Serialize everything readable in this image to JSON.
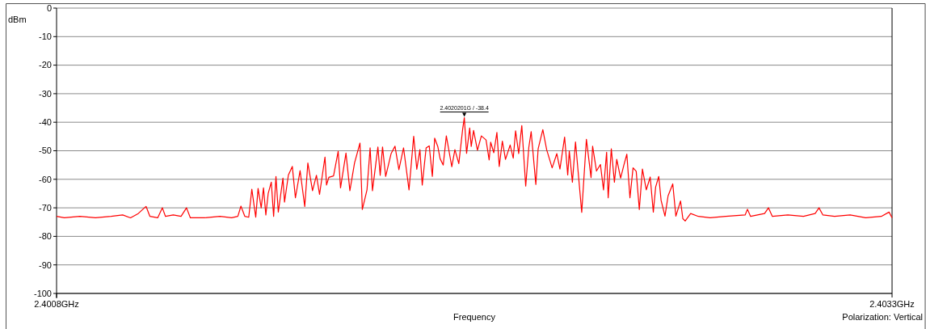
{
  "chart_data": {
    "type": "line",
    "xlabel": "Frequency",
    "ylabel": "dBm",
    "xlim": [
      2.4008,
      2.4033
    ],
    "xticks": [
      {
        "value": 2.4008,
        "label": "2.4008GHz"
      },
      {
        "value": 2.4033,
        "label": "2.4033GHz"
      }
    ],
    "ylim": [
      -100,
      0
    ],
    "yticks": [
      0,
      -10,
      -20,
      -30,
      -40,
      -50,
      -60,
      -70,
      -80,
      -90,
      -100
    ],
    "grid": "y",
    "marker": "none",
    "line_style": "solid",
    "annotations": [
      {
        "text": "2.4020201G / -38.4",
        "x": 2.4020201,
        "y": -38.4
      },
      "Polarization: Vertical"
    ],
    "series": [
      {
        "color": "#ff0000",
        "x": [
          2.4008,
          2.4008233,
          2.4008698,
          2.4009164,
          2.400963,
          2.4009979,
          2.4010212,
          2.4010444,
          2.4010677,
          2.4010794,
          2.4011026,
          2.4011166,
          2.4011259,
          2.4011492,
          2.4011725,
          2.4011888,
          2.4012004,
          2.4012423,
          2.4012889,
          2.4013238,
          2.4013424,
          2.4013517,
          2.4013634,
          2.401375,
          2.4013843,
          2.401396,
          2.401403,
          2.4014123,
          2.4014192,
          2.4014262,
          2.4014332,
          2.4014425,
          2.4014495,
          2.4014565,
          2.4014635,
          2.4014774,
          2.4014821,
          2.4014937,
          2.4015054,
          2.4015147,
          2.4015287,
          2.4015426,
          2.4015519,
          2.4015659,
          2.4015776,
          2.4015869,
          2.4016032,
          2.4016078,
          2.4016148,
          2.4016288,
          2.4016427,
          2.4016497,
          2.401666,
          2.4016777,
          2.4016916,
          2.4017079,
          2.4017149,
          2.4017289,
          2.4017382,
          2.4017452,
          2.4017615,
          2.4017684,
          2.4017754,
          2.4017847,
          2.401801,
          2.4018127,
          2.4018243,
          2.4018383,
          2.4018546,
          2.4018686,
          2.4018779,
          2.4018872,
          2.4018942,
          2.4019058,
          2.4019151,
          2.4019244,
          2.4019314,
          2.4019407,
          2.4019477,
          2.401957,
          2.4019663,
          2.4019826,
          2.4019919,
          2.4020036,
          2.4020152,
          2.4020201,
          2.4020269,
          2.4020362,
          2.4020408,
          2.4020478,
          2.4020594,
          2.4020711,
          2.4020851,
          2.4020944,
          2.402099,
          2.4021083,
          2.4021176,
          2.4021246,
          2.4021339,
          2.4021433,
          2.4021572,
          2.4021665,
          2.4021735,
          2.4021828,
          2.4021921,
          2.4022038,
          2.4022131,
          2.4022201,
          2.4022341,
          2.402241,
          2.402255,
          2.4022666,
          2.4022829,
          2.4022969,
          2.4023062,
          2.4023202,
          2.4023295,
          2.4023342,
          2.4023435,
          2.4023528,
          2.4023714,
          2.4023854,
          2.4023993,
          2.402404,
          2.4024156,
          2.4024273,
          2.4024366,
          2.4024459,
          2.4024506,
          2.4024599,
          2.4024692,
          2.4024762,
          2.4024878,
          2.4024971,
          2.4025064,
          2.4025157,
          2.402525,
          2.4025344,
          2.4025437,
          2.402553,
          2.4025646,
          2.4025763,
          2.4025856,
          2.4025926,
          2.4026019,
          2.4026089,
          2.4026205,
          2.4026298,
          2.4026438,
          2.4026531,
          2.4026671,
          2.402674,
          2.402681,
          2.4026973,
          2.4027206,
          2.4027555,
          2.4028021,
          2.4028603,
          2.4028673,
          2.4028766,
          2.4029185,
          2.4029301,
          2.4029418,
          2.4029883,
          2.4030349,
          2.4030698,
          2.4030814,
          2.4030931,
          2.403128,
          2.4031746,
          2.4032211,
          2.4032677,
          2.403291,
          2.4033
        ],
        "values": [
          -73,
          -73.5,
          -73,
          -73.5,
          -73,
          -72.5,
          -73.5,
          -72,
          -69.5,
          -73,
          -73.5,
          -70,
          -73,
          -72.5,
          -73,
          -70,
          -73.5,
          -73.5,
          -73,
          -73.5,
          -73,
          -69.4,
          -73,
          -73.3,
          -63.5,
          -73.3,
          -63.2,
          -70,
          -63,
          -72.5,
          -65,
          -61,
          -73,
          -59,
          -71.5,
          -59.6,
          -68,
          -58.5,
          -55.5,
          -66.5,
          -57,
          -69.5,
          -54.3,
          -64,
          -58.6,
          -65.3,
          -52.2,
          -62,
          -59.3,
          -58.8,
          -50.2,
          -63,
          -50.8,
          -64,
          -54.3,
          -47.3,
          -70.6,
          -63.7,
          -49,
          -64,
          -48.7,
          -58.6,
          -48.7,
          -59,
          -51,
          -48.4,
          -56.6,
          -49,
          -63.7,
          -44.9,
          -56.5,
          -49.6,
          -62,
          -49,
          -48.3,
          -59,
          -45.6,
          -48.5,
          -52.8,
          -55,
          -44.8,
          -55.6,
          -49.6,
          -54.5,
          -42.4,
          -38.4,
          -50.9,
          -42,
          -48.5,
          -42.9,
          -49.8,
          -44.8,
          -46.2,
          -53.2,
          -47,
          -50.7,
          -43.6,
          -55.5,
          -46.6,
          -53,
          -48,
          -52.6,
          -43,
          -51,
          -41.2,
          -62.4,
          -48.8,
          -43.3,
          -61.8,
          -49.3,
          -42.6,
          -49.7,
          -56,
          -51,
          -56.4,
          -45.2,
          -58.5,
          -50.1,
          -61,
          -46.9,
          -71.6,
          -46,
          -59.4,
          -48.4,
          -57.1,
          -54.8,
          -63.7,
          -50.5,
          -66.5,
          -49.3,
          -61,
          -53,
          -59.6,
          -55.2,
          -51.2,
          -66.5,
          -56,
          -57.2,
          -70.6,
          -56.4,
          -63.7,
          -59.2,
          -71.5,
          -62.7,
          -59,
          -67.4,
          -72.9,
          -65.8,
          -61.6,
          -72.9,
          -67.6,
          -73.8,
          -74.6,
          -72,
          -73,
          -73.5,
          -73,
          -72.5,
          -70.5,
          -73,
          -72,
          -70,
          -73,
          -72.5,
          -73,
          -72,
          -70,
          -72.5,
          -73,
          -72.5,
          -73.5,
          -73,
          -71.5,
          -73.5
        ]
      }
    ]
  }
}
